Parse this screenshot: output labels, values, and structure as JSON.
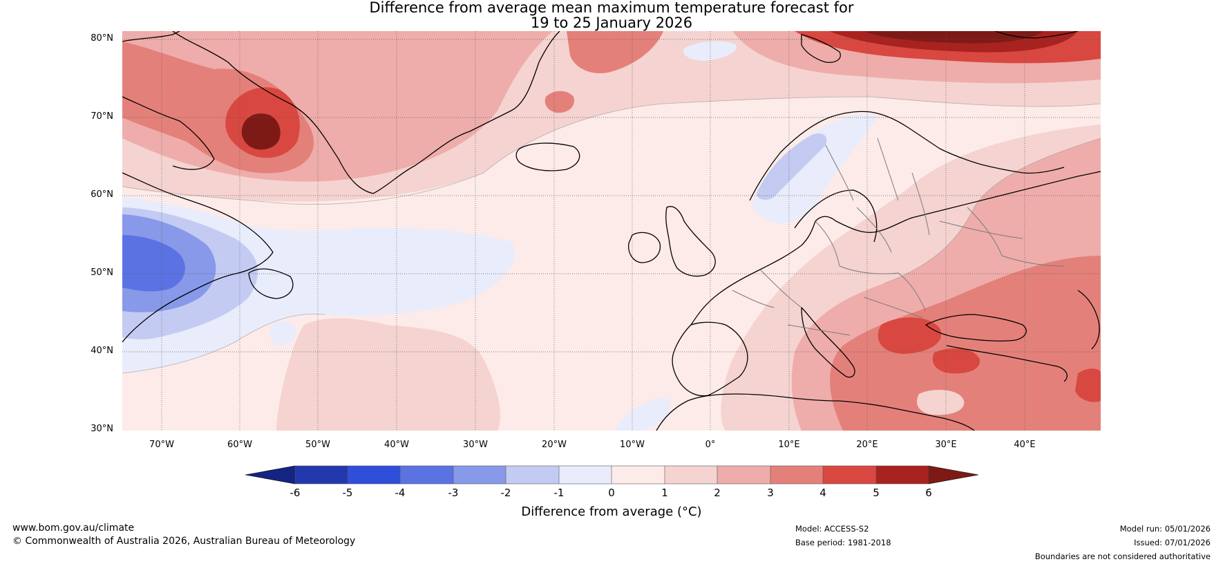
{
  "title": {
    "line1": "Difference from average mean maximum temperature forecast for",
    "line2": "19 to 25 January 2026"
  },
  "map": {
    "latitude_labels": [
      "80°N",
      "70°N",
      "60°N",
      "50°N",
      "40°N",
      "30°N"
    ],
    "longitude_labels": [
      "70°W",
      "60°W",
      "50°W",
      "40°W",
      "30°W",
      "20°W",
      "10°W",
      "0°",
      "10°E",
      "20°E",
      "30°E",
      "40°E"
    ]
  },
  "colorbar": {
    "title": "Difference from average (°C)",
    "ticks": [
      "-6",
      "-5",
      "-4",
      "-3",
      "-2",
      "-1",
      "0",
      "1",
      "2",
      "3",
      "4",
      "5",
      "6"
    ],
    "colors": [
      "#132482",
      "#2438ad",
      "#2f4fdb",
      "#5b72e3",
      "#8799e8",
      "#c3cbf3",
      "#e9ecfb",
      "#fcebe9",
      "#f5d3d0",
      "#eeadaa",
      "#e4807a",
      "#d84841",
      "#a8221f",
      "#7d1a16"
    ]
  },
  "footer": {
    "website": "www.bom.gov.au/climate",
    "copyright": "© Commonwealth of Australia 2026, Australian Bureau of Meteorology",
    "model": "Model: ACCESS-S2",
    "base_period": "Base period: 1981-2018",
    "model_run": "Model run: 05/01/2026",
    "issued": "Issued: 07/01/2026",
    "disclaimer": "Boundaries are not considered authoritative"
  }
}
